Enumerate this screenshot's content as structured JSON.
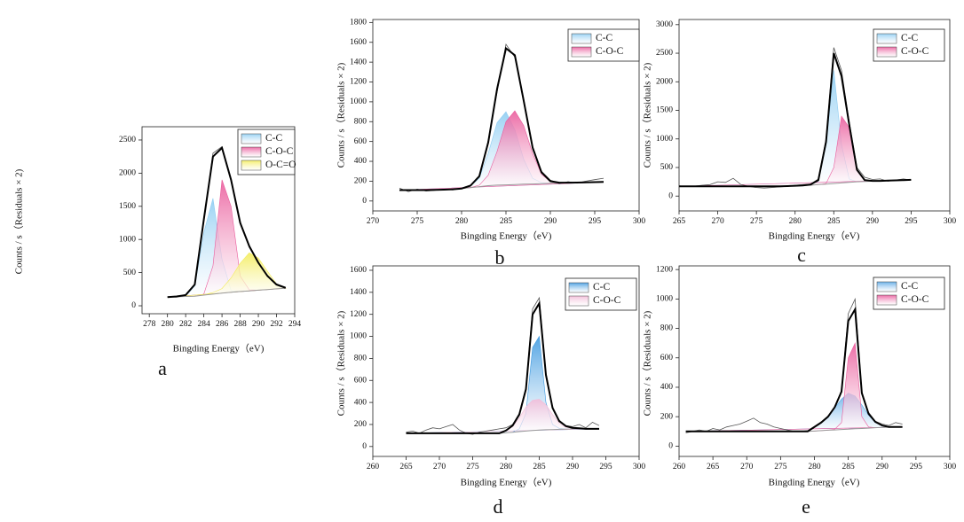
{
  "chart_data": [
    {
      "type": "area",
      "label": "a",
      "xlabel": "Bingding Energy（eV)",
      "ylabel": "Counts / s（Residuals × 2)",
      "xlim": [
        277.2,
        294
      ],
      "xticks": [
        278,
        280,
        282,
        284,
        286,
        288,
        290,
        292,
        294
      ],
      "ylim": [
        -120,
        2700
      ],
      "yticks": [
        0,
        500,
        1000,
        1500,
        2000,
        2500
      ],
      "x": [
        280,
        281,
        282,
        283,
        284,
        285,
        286,
        287,
        288,
        289,
        290,
        291,
        292,
        293
      ],
      "raw": {
        "color": "#555555",
        "values": [
          135,
          130,
          170,
          330,
          1280,
          2300,
          2400,
          1880,
          1270,
          880,
          660,
          440,
          330,
          280
        ]
      },
      "envelope": {
        "color": "#000000",
        "values": [
          130,
          140,
          160,
          320,
          1300,
          2250,
          2380,
          1900,
          1250,
          900,
          650,
          450,
          320,
          270
        ]
      },
      "baseline": {
        "color": "#999999",
        "values": [
          130,
          135,
          140,
          145,
          160,
          175,
          190,
          205,
          215,
          225,
          235,
          245,
          255,
          265
        ]
      },
      "series": [
        {
          "name": "C-C",
          "color": "#8fcdf2",
          "values": [
            130,
            135,
            145,
            300,
            1100,
            1620,
            700,
            230,
            215,
            225,
            235,
            245,
            255,
            265
          ]
        },
        {
          "name": "C-O-C",
          "color": "#ea5c9c",
          "values": [
            130,
            135,
            140,
            145,
            175,
            600,
            1900,
            1500,
            450,
            240,
            235,
            245,
            255,
            265
          ]
        },
        {
          "name": "O-C=O",
          "color": "#f3ec5a",
          "values": [
            130,
            135,
            140,
            145,
            165,
            200,
            260,
            420,
            640,
            800,
            720,
            520,
            330,
            265
          ]
        }
      ]
    },
    {
      "type": "area",
      "label": "b",
      "xlabel": "Bingding Energy（eV)",
      "ylabel": "Counts / s（Residuals × 2)",
      "xlim": [
        270,
        300
      ],
      "xticks": [
        270,
        275,
        280,
        285,
        290,
        295,
        300
      ],
      "ylim": [
        -100,
        1830
      ],
      "yticks": [
        0,
        200,
        400,
        600,
        800,
        1000,
        1200,
        1400,
        1600,
        1800
      ],
      "x": [
        273,
        274,
        275,
        276,
        277,
        278,
        279,
        280,
        281,
        282,
        283,
        284,
        285,
        286,
        287,
        288,
        289,
        290,
        291,
        292,
        293,
        294,
        295,
        296
      ],
      "raw": {
        "color": "#555555",
        "values": [
          130,
          95,
          120,
          100,
          108,
          118,
          112,
          130,
          160,
          240,
          610,
          1100,
          1580,
          1450,
          1030,
          520,
          300,
          210,
          175,
          195,
          180,
          200,
          215,
          230
        ]
      },
      "envelope": {
        "color": "#000000",
        "values": [
          110,
          110,
          110,
          110,
          112,
          114,
          118,
          125,
          155,
          250,
          590,
          1130,
          1540,
          1470,
          1010,
          540,
          290,
          200,
          185,
          185,
          186,
          188,
          190,
          192
        ]
      },
      "baseline": {
        "color": "#999999",
        "values": [
          110,
          110,
          110,
          110,
          112,
          114,
          118,
          125,
          135,
          145,
          155,
          160,
          163,
          166,
          170,
          172,
          175,
          178,
          180,
          182,
          184,
          186,
          188,
          190
        ]
      },
      "series": [
        {
          "name": "C-C",
          "color": "#8fcdf2",
          "values": [
            110,
            110,
            110,
            110,
            112,
            114,
            118,
            125,
            150,
            230,
            480,
            790,
            900,
            720,
            420,
            230,
            185,
            178,
            180,
            182,
            184,
            186,
            188,
            190
          ]
        },
        {
          "name": "C-O-C",
          "color": "#ea5c9c",
          "values": [
            110,
            110,
            110,
            110,
            112,
            114,
            118,
            125,
            135,
            160,
            260,
            500,
            800,
            910,
            760,
            480,
            270,
            195,
            180,
            182,
            184,
            186,
            188,
            190
          ]
        }
      ]
    },
    {
      "type": "area",
      "label": "c",
      "xlabel": "Bingding Energy（eV)",
      "ylabel": "Counts / s（Residuals × 2)",
      "xlim": [
        265,
        300
      ],
      "xticks": [
        265,
        270,
        275,
        280,
        285,
        290,
        295,
        300
      ],
      "ylim": [
        -260,
        3090
      ],
      "yticks": [
        0,
        500,
        1000,
        1500,
        2000,
        2500,
        3000
      ],
      "x": [
        265,
        266,
        267,
        268,
        269,
        270,
        271,
        272,
        273,
        274,
        275,
        276,
        277,
        278,
        279,
        280,
        281,
        282,
        283,
        284,
        285,
        286,
        287,
        288,
        289,
        290,
        291,
        292,
        293,
        294,
        295
      ],
      "raw": {
        "color": "#555555",
        "values": [
          180,
          165,
          175,
          190,
          200,
          250,
          240,
          310,
          200,
          170,
          150,
          140,
          150,
          160,
          170,
          190,
          200,
          210,
          300,
          1000,
          2600,
          2200,
          1300,
          500,
          330,
          290,
          300,
          260,
          280,
          300,
          280
        ]
      },
      "envelope": {
        "color": "#000000",
        "values": [
          170,
          170,
          170,
          170,
          170,
          170,
          170,
          170,
          170,
          170,
          170,
          170,
          170,
          170,
          175,
          180,
          185,
          200,
          280,
          950,
          2500,
          2100,
          1250,
          460,
          280,
          265,
          265,
          270,
          275,
          280,
          285
        ]
      },
      "baseline": {
        "color": "#999999",
        "values": [
          170,
          170,
          170,
          170,
          170,
          170,
          170,
          170,
          170,
          170,
          170,
          170,
          170,
          170,
          175,
          180,
          185,
          190,
          200,
          210,
          220,
          230,
          240,
          250,
          255,
          260,
          265,
          270,
          275,
          280,
          285
        ]
      },
      "series": [
        {
          "name": "C-C",
          "color": "#8fcdf2",
          "values": [
            170,
            170,
            170,
            170,
            170,
            170,
            170,
            170,
            170,
            170,
            170,
            170,
            170,
            170,
            175,
            180,
            185,
            195,
            260,
            900,
            2200,
            900,
            300,
            250,
            255,
            260,
            265,
            270,
            275,
            280,
            285
          ]
        },
        {
          "name": "C-O-C",
          "color": "#ea5c9c",
          "values": [
            170,
            170,
            170,
            170,
            170,
            170,
            170,
            170,
            170,
            170,
            170,
            170,
            170,
            170,
            175,
            180,
            185,
            190,
            200,
            220,
            500,
            1400,
            1200,
            450,
            270,
            260,
            265,
            270,
            275,
            280,
            285
          ]
        }
      ]
    },
    {
      "type": "area",
      "label": "d",
      "xlabel": "Bingding Energy（eV)",
      "ylabel": "Counts / s（Residuals × 2)",
      "xlim": [
        260,
        300
      ],
      "xticks": [
        260,
        265,
        270,
        275,
        280,
        285,
        290,
        295,
        300
      ],
      "ylim": [
        -90,
        1640
      ],
      "yticks": [
        0,
        200,
        400,
        600,
        800,
        1000,
        1200,
        1400,
        1600
      ],
      "x": [
        265,
        266,
        267,
        268,
        269,
        270,
        271,
        272,
        273,
        274,
        275,
        276,
        277,
        278,
        279,
        280,
        281,
        282,
        283,
        284,
        285,
        286,
        287,
        288,
        289,
        290,
        291,
        292,
        293,
        294
      ],
      "raw": {
        "color": "#555555",
        "values": [
          130,
          140,
          120,
          150,
          170,
          160,
          180,
          200,
          150,
          120,
          110,
          130,
          140,
          150,
          160,
          170,
          200,
          300,
          540,
          1250,
          1350,
          670,
          360,
          240,
          190,
          180,
          200,
          170,
          220,
          190
        ]
      },
      "envelope": {
        "color": "#000000",
        "values": [
          120,
          120,
          120,
          120,
          120,
          120,
          120,
          120,
          120,
          120,
          120,
          120,
          120,
          120,
          120,
          145,
          190,
          290,
          520,
          1200,
          1300,
          650,
          350,
          230,
          185,
          170,
          165,
          160,
          160,
          160
        ]
      },
      "baseline": {
        "color": "#999999",
        "values": [
          120,
          120,
          120,
          120,
          120,
          120,
          120,
          120,
          120,
          120,
          120,
          120,
          120,
          120,
          120,
          125,
          130,
          135,
          140,
          145,
          150,
          152,
          154,
          156,
          158,
          160,
          160,
          160,
          160,
          160
        ]
      },
      "series": [
        {
          "name": "C-C",
          "color": "#3f9ae0",
          "values": [
            120,
            120,
            120,
            120,
            120,
            120,
            120,
            120,
            120,
            120,
            120,
            120,
            120,
            120,
            120,
            125,
            130,
            160,
            300,
            900,
            1000,
            400,
            200,
            165,
            158,
            160,
            160,
            160,
            160,
            160
          ]
        },
        {
          "name": "C-O-C",
          "color": "#f2bcd8",
          "values": [
            120,
            120,
            120,
            120,
            120,
            120,
            120,
            120,
            120,
            120,
            120,
            120,
            120,
            120,
            120,
            140,
            180,
            260,
            360,
            420,
            430,
            380,
            290,
            210,
            175,
            165,
            160,
            160,
            160,
            160
          ]
        }
      ]
    },
    {
      "type": "area",
      "label": "e",
      "xlabel": "Bingding Energy（eV)",
      "ylabel": "Counts / s（Residuals × 2)",
      "xlim": [
        260,
        300
      ],
      "xticks": [
        260,
        265,
        270,
        275,
        280,
        285,
        290,
        295,
        300
      ],
      "ylim": [
        -70,
        1225
      ],
      "yticks": [
        0,
        200,
        400,
        600,
        800,
        1000,
        1200
      ],
      "x": [
        261,
        262,
        263,
        264,
        265,
        266,
        267,
        268,
        269,
        270,
        271,
        272,
        273,
        274,
        275,
        276,
        277,
        278,
        279,
        280,
        281,
        282,
        283,
        284,
        285,
        286,
        287,
        288,
        289,
        290,
        291,
        292,
        293
      ],
      "raw": {
        "color": "#555555",
        "values": [
          90,
          100,
          110,
          100,
          120,
          110,
          130,
          140,
          150,
          170,
          190,
          160,
          150,
          130,
          120,
          110,
          100,
          100,
          105,
          135,
          165,
          205,
          260,
          380,
          900,
          1000,
          370,
          230,
          170,
          150,
          140,
          160,
          150
        ]
      },
      "envelope": {
        "color": "#000000",
        "values": [
          100,
          100,
          100,
          100,
          100,
          100,
          100,
          100,
          100,
          100,
          100,
          100,
          100,
          100,
          100,
          100,
          100,
          100,
          100,
          130,
          160,
          200,
          265,
          370,
          850,
          930,
          360,
          220,
          165,
          140,
          130,
          130,
          130
        ]
      },
      "baseline": {
        "color": "#999999",
        "values": [
          100,
          100,
          100,
          100,
          100,
          100,
          100,
          100,
          100,
          100,
          100,
          100,
          100,
          100,
          100,
          100,
          100,
          100,
          100,
          102,
          105,
          108,
          110,
          113,
          115,
          118,
          120,
          122,
          125,
          127,
          128,
          129,
          130
        ]
      },
      "series": [
        {
          "name": "C-C",
          "color": "#5aa8e6",
          "values": [
            100,
            100,
            100,
            100,
            100,
            100,
            100,
            100,
            100,
            100,
            100,
            100,
            100,
            100,
            100,
            100,
            100,
            100,
            100,
            130,
            160,
            200,
            260,
            320,
            360,
            340,
            280,
            210,
            160,
            140,
            130,
            129,
            130
          ]
        },
        {
          "name": "C-O-C",
          "color": "#ea5c9c",
          "values": [
            100,
            100,
            100,
            100,
            100,
            100,
            100,
            100,
            100,
            100,
            100,
            100,
            100,
            100,
            100,
            100,
            100,
            100,
            100,
            102,
            105,
            108,
            115,
            160,
            600,
            700,
            200,
            130,
            125,
            127,
            128,
            129,
            130
          ]
        }
      ]
    }
  ]
}
